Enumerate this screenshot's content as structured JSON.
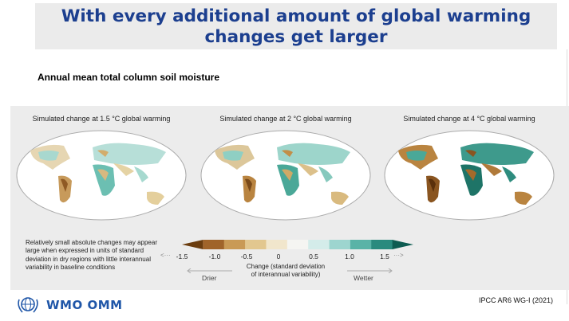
{
  "slide": {
    "title_line1": "With every additional amount of global warming",
    "title_line2": "changes get larger",
    "subtitle": "Annual mean total column soil moisture",
    "credit": "IPCC AR6 WG-I (2021)",
    "logo_text": "WMO OMM"
  },
  "panels": [
    {
      "title": "Simulated change at 1.5 °C global warming"
    },
    {
      "title": "Simulated change at 2 °C global warming"
    },
    {
      "title": "Simulated change at 4 °C global warming"
    }
  ],
  "note": "Relatively small absolute changes may appear large when expressed in units of standard deviation in dry regions with little interannual variability in baseline conditions",
  "colorbar": {
    "ticks": [
      "-1.5",
      "-1.0",
      "-0.5",
      "0",
      "0.5",
      "1.0",
      "1.5"
    ],
    "label_line1": "Change (standard deviation",
    "label_line2": "of interannual variability)",
    "drier": "Drier",
    "wetter": "Wetter",
    "colors": [
      "#6b3d0f",
      "#a0642a",
      "#c99a56",
      "#e2c78f",
      "#f1e6cc",
      "#f5f5f2",
      "#d4ecea",
      "#9dd5cf",
      "#5ab3a7",
      "#2a8a7e",
      "#0e5c52"
    ]
  },
  "logo_icon": "globe-laurel-icon"
}
